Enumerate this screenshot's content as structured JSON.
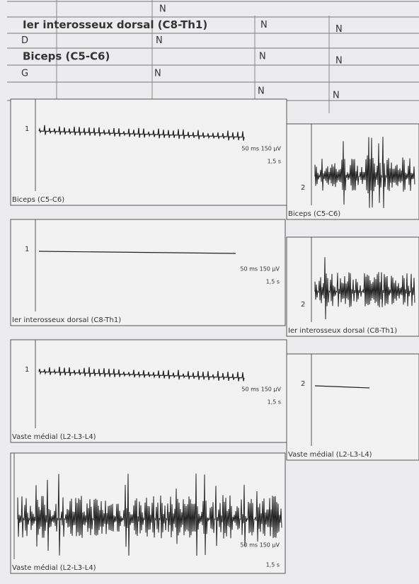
{
  "table": {
    "rows": [
      {
        "cells": [
          "N"
        ]
      },
      {
        "heading": "Ier interosseux dorsal (C8-Th1)",
        "cells": [
          "N",
          "N"
        ]
      },
      {
        "label": "D",
        "cells": [
          "N"
        ]
      },
      {
        "heading": "Biceps (C5-C6)",
        "cells": [
          "N",
          "N"
        ]
      },
      {
        "label": "G",
        "cells": [
          "N"
        ]
      },
      {
        "cells": [
          "N",
          "N"
        ]
      }
    ]
  },
  "panels": [
    {
      "number": "1",
      "scale": "50 ms 150 µV",
      "duration": "1,5 s",
      "caption": "Biceps (C5-C6)"
    },
    {
      "number": "2",
      "caption": "Biceps (C5-C6)"
    },
    {
      "number": "1",
      "scale": "50 ms 150 µV",
      "duration": "1,5 s",
      "caption": "Ier interosseux dorsal (C8-Th1)"
    },
    {
      "number": "2",
      "caption": "Ier interosseux dorsal (C8-Th1)"
    },
    {
      "number": "1",
      "scale": "50 ms 150 µV",
      "duration": "1,5 s",
      "caption": "Vaste médial (L2-L3-L4)"
    },
    {
      "number": "2",
      "caption": "Vaste médial (L2-L3-L4)"
    },
    {
      "scale": "50 ms 150 µV",
      "duration": "1,5 s",
      "caption": "Vaste médial (L2-L3-L4)"
    }
  ]
}
